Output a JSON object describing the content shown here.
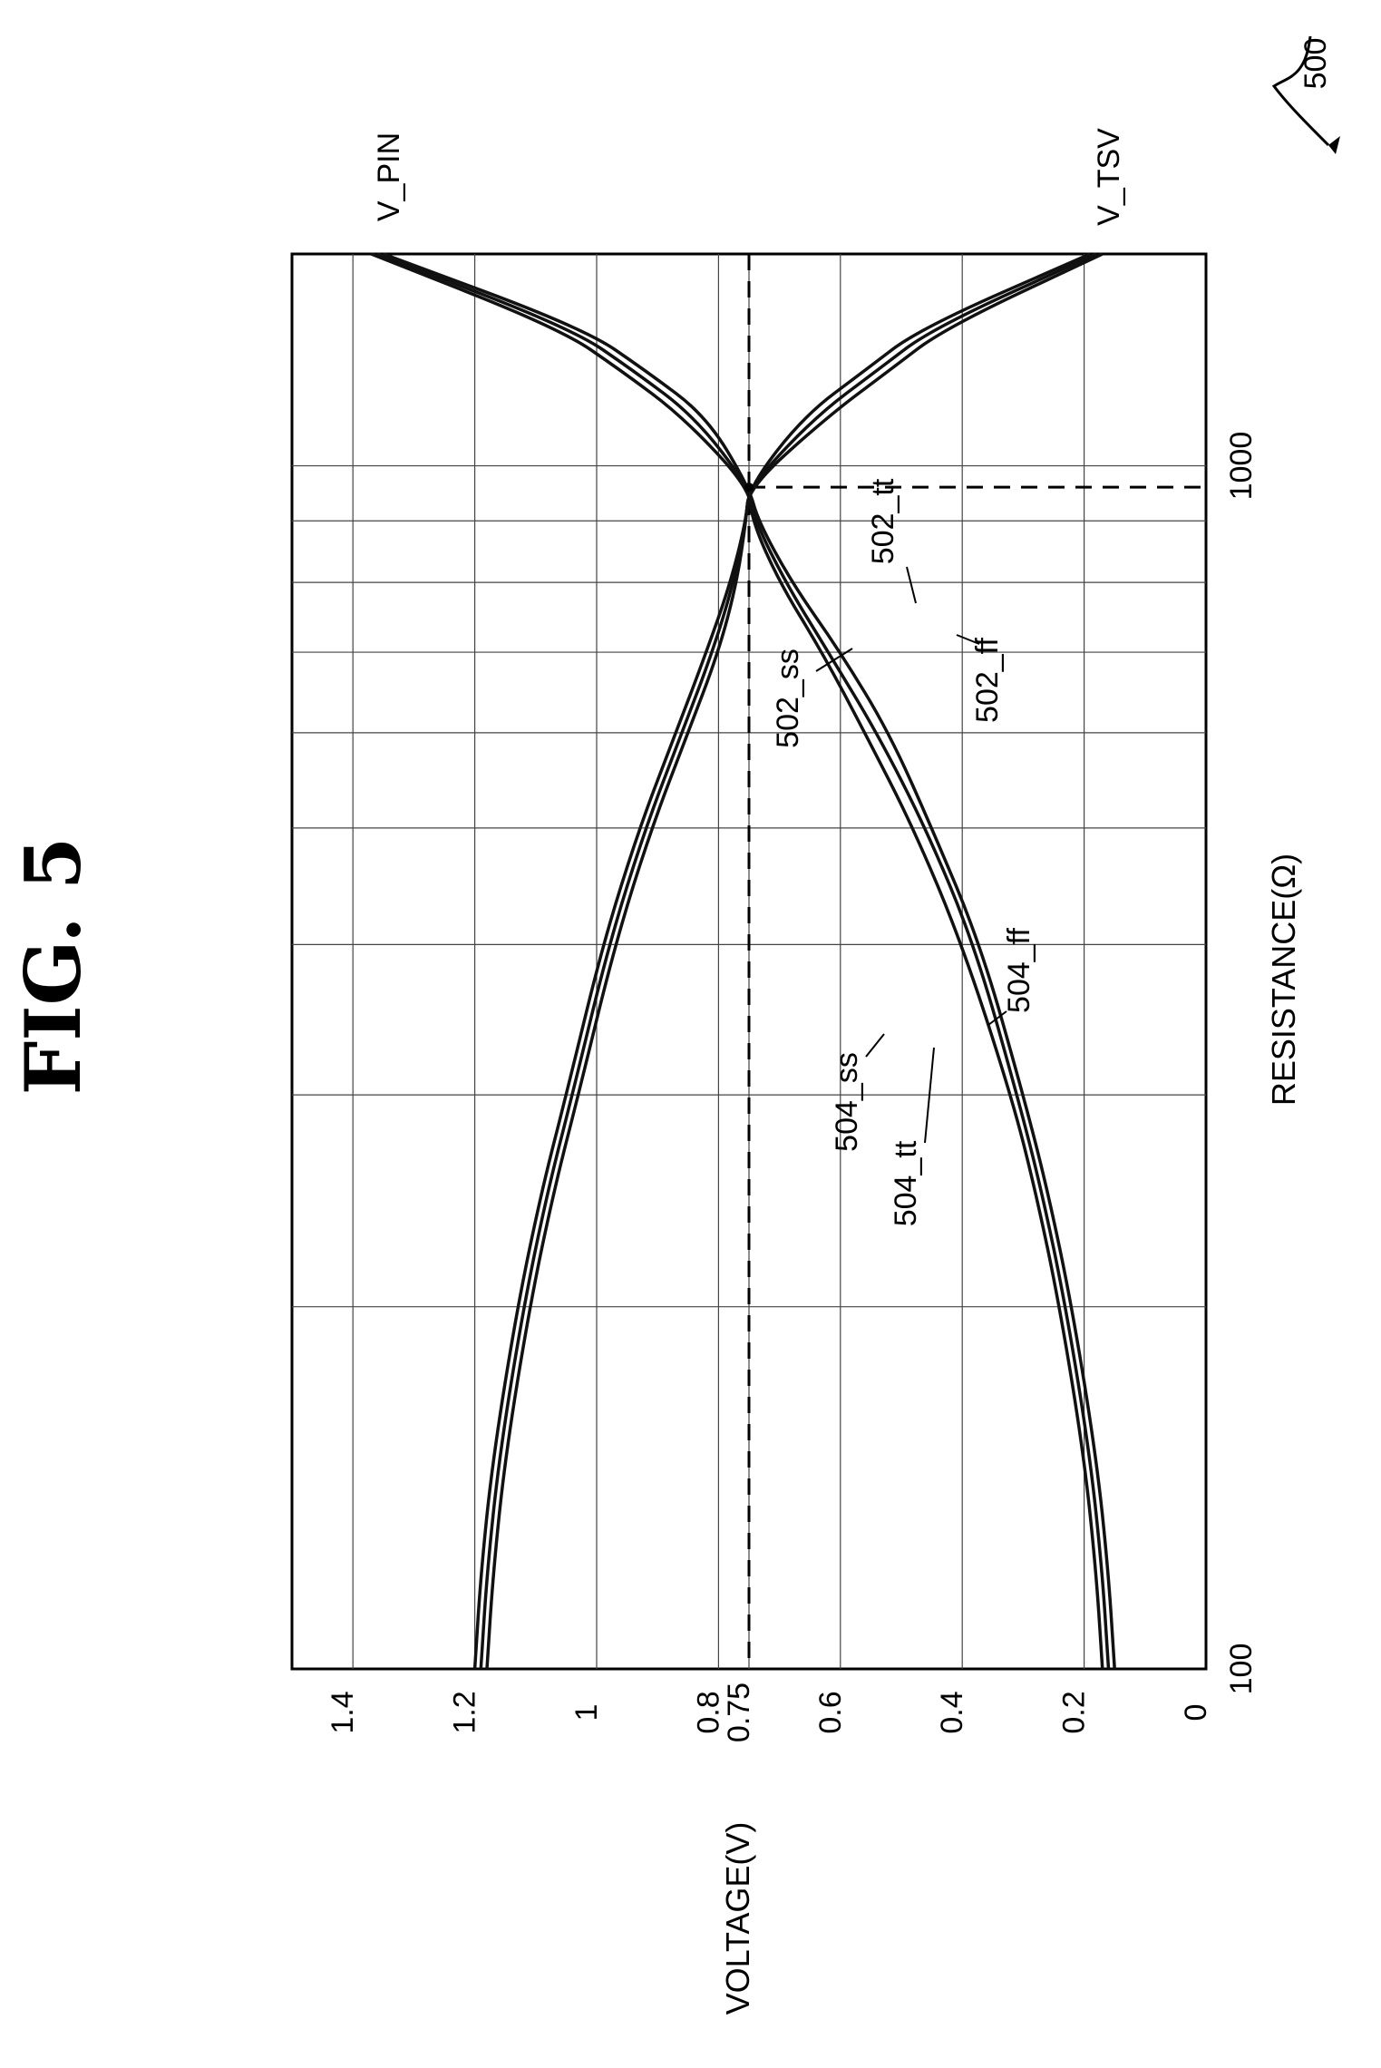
{
  "figure": {
    "title": "FIG. 5",
    "ref_number": "500"
  },
  "chart_data": {
    "type": "line",
    "xlabel": "RESISTANCE(Ω)",
    "ylabel": "VOLTAGE(V)",
    "x_scale": "log",
    "xlim": [
      100,
      1500
    ],
    "ylim": [
      0,
      1.5
    ],
    "x_ticks": [
      100,
      1000
    ],
    "y_ticks": [
      0,
      0.2,
      0.4,
      0.6,
      0.75,
      0.8,
      1,
      1.2,
      1.4
    ],
    "y_tick_labels": [
      "0",
      "0.2",
      "0.4",
      "0.6",
      "0.75",
      "0.8",
      "1",
      "1.2",
      "1.4"
    ],
    "x_minor_gridlines": [
      200,
      300,
      400,
      500,
      600,
      700,
      800,
      900
    ],
    "grid": true,
    "reference_lines": {
      "x": 960,
      "y": 0.75
    },
    "crossover": {
      "x": 960,
      "y": 0.75
    },
    "group_labels": [
      "V_PIN",
      "V_TSV"
    ],
    "series": [
      {
        "name": "502_ss",
        "group": "V_PIN",
        "x": [
          100,
          120,
          150,
          200,
          250,
          300,
          400,
          500,
          600,
          700,
          800,
          900,
          960,
          1100,
          1200,
          1300,
          1500
        ],
        "y": [
          0.17,
          0.18,
          0.2,
          0.24,
          0.28,
          0.32,
          0.4,
          0.48,
          0.56,
          0.63,
          0.7,
          0.745,
          0.75,
          0.86,
          0.96,
          1.06,
          1.37
        ]
      },
      {
        "name": "502_tt",
        "group": "V_PIN",
        "x": [
          100,
          120,
          150,
          200,
          250,
          300,
          400,
          500,
          600,
          700,
          800,
          900,
          960,
          1100,
          1200,
          1300,
          1500
        ],
        "y": [
          0.16,
          0.17,
          0.19,
          0.23,
          0.27,
          0.31,
          0.38,
          0.46,
          0.54,
          0.62,
          0.69,
          0.74,
          0.75,
          0.84,
          0.94,
          1.04,
          1.36
        ]
      },
      {
        "name": "502_ff",
        "group": "V_PIN",
        "x": [
          100,
          120,
          150,
          200,
          250,
          300,
          400,
          500,
          600,
          700,
          800,
          900,
          960,
          1100,
          1200,
          1300,
          1500
        ],
        "y": [
          0.15,
          0.16,
          0.18,
          0.22,
          0.26,
          0.3,
          0.37,
          0.45,
          0.52,
          0.6,
          0.68,
          0.735,
          0.75,
          0.82,
          0.92,
          1.02,
          1.35
        ]
      },
      {
        "name": "504_ss",
        "group": "V_TSV",
        "x": [
          100,
          120,
          150,
          200,
          250,
          300,
          400,
          500,
          600,
          700,
          800,
          900,
          960,
          1100,
          1200,
          1300,
          1500
        ],
        "y": [
          1.2,
          1.19,
          1.17,
          1.13,
          1.09,
          1.05,
          0.99,
          0.93,
          0.87,
          0.82,
          0.78,
          0.755,
          0.75,
          0.62,
          0.52,
          0.43,
          0.17
        ]
      },
      {
        "name": "504_tt",
        "group": "V_TSV",
        "x": [
          100,
          120,
          150,
          200,
          250,
          300,
          400,
          500,
          600,
          700,
          800,
          900,
          960,
          1100,
          1200,
          1300,
          1500
        ],
        "y": [
          1.19,
          1.18,
          1.16,
          1.12,
          1.08,
          1.04,
          0.98,
          0.92,
          0.86,
          0.81,
          0.775,
          0.755,
          0.75,
          0.64,
          0.54,
          0.45,
          0.18
        ]
      },
      {
        "name": "504_ff",
        "group": "V_TSV",
        "x": [
          100,
          120,
          150,
          200,
          250,
          300,
          400,
          500,
          600,
          700,
          800,
          900,
          960,
          1100,
          1200,
          1300,
          1500
        ],
        "y": [
          1.18,
          1.17,
          1.15,
          1.11,
          1.07,
          1.03,
          0.97,
          0.91,
          0.85,
          0.8,
          0.77,
          0.755,
          0.75,
          0.66,
          0.56,
          0.47,
          0.19
        ]
      }
    ]
  }
}
